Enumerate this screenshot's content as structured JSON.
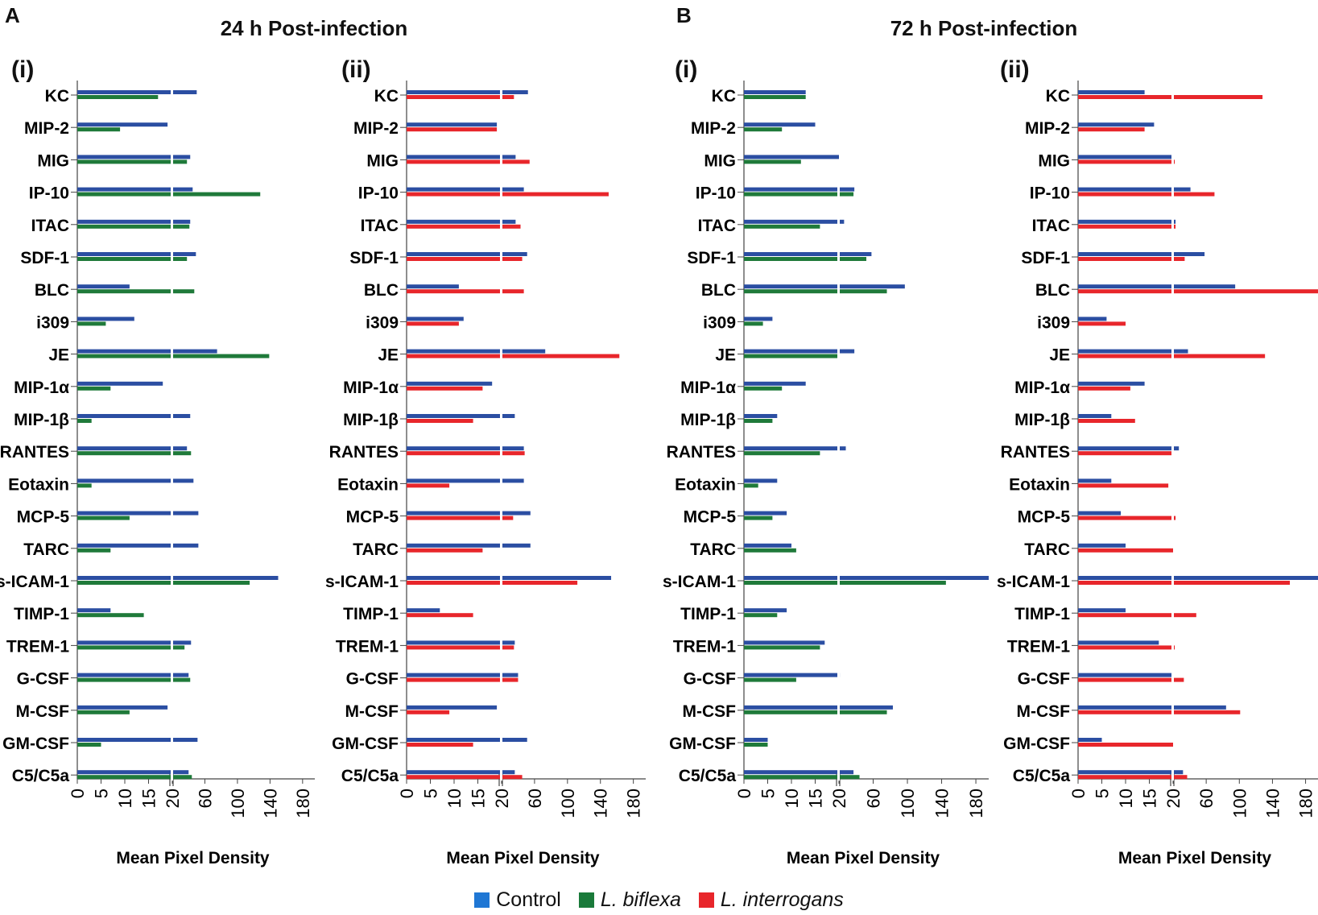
{
  "panels": [
    {
      "letter": "A",
      "title": "24 h Post-infection"
    },
    {
      "letter": "B",
      "title": "72 h Post-infection"
    }
  ],
  "legend": {
    "items": [
      {
        "label": "Control",
        "color": "#1f77d4",
        "italic": false
      },
      {
        "label": "L. biflexa",
        "color": "#1a7a3a",
        "italic": true
      },
      {
        "label": "L. interrogans",
        "color": "#e8262b",
        "italic": true
      }
    ]
  },
  "colors": {
    "control": "#2b4ea2",
    "biflexa": "#1f7a3a",
    "interrogans": "#e8262b"
  },
  "chart_data": [
    {
      "type": "bar",
      "panel": "A",
      "subpanel": "(i)",
      "orientation": "horizontal",
      "xlabel": "Mean Pixel Density",
      "xticks": [
        "0",
        "5",
        "10",
        "15",
        "20",
        "60",
        "100",
        "140",
        "180"
      ],
      "axis_break": 20,
      "categories": [
        "KC",
        "MIP-2",
        "MIG",
        "IP-10",
        "ITAC",
        "SDF-1",
        "BLC",
        "i309",
        "JE",
        "MIP-1α",
        "MIP-1β",
        "RANTES",
        "Eotaxin",
        "MCP-5",
        "TARC",
        "s-ICAM-1",
        "TIMP-1",
        "TREM-1",
        "G-CSF",
        "M-CSF",
        "GM-CSF",
        "C5/C5a"
      ],
      "series": [
        {
          "name": "Control",
          "values": [
            50,
            19,
            42,
            45,
            42,
            49,
            11,
            12,
            75,
            18,
            42,
            38,
            46,
            52,
            52,
            150,
            7,
            43,
            40,
            19,
            51,
            40
          ]
        },
        {
          "name": "L. biflexa",
          "values": [
            17,
            9,
            38,
            128,
            41,
            38,
            47,
            6,
            139,
            7,
            3,
            43,
            3,
            11,
            7,
            115,
            14,
            35,
            42,
            11,
            5,
            44
          ]
        }
      ]
    },
    {
      "type": "bar",
      "panel": "A",
      "subpanel": "(ii)",
      "orientation": "horizontal",
      "xlabel": "Mean Pixel Density",
      "xticks": [
        "0",
        "5",
        "10",
        "15",
        "20",
        "60",
        "100",
        "140",
        "180"
      ],
      "axis_break": 20,
      "categories": [
        "KC",
        "MIP-2",
        "MIG",
        "IP-10",
        "ITAC",
        "SDF-1",
        "BLC",
        "i309",
        "JE",
        "MIP-1α",
        "MIP-1β",
        "RANTES",
        "Eotaxin",
        "MCP-5",
        "TARC",
        "s-ICAM-1",
        "TIMP-1",
        "TREM-1",
        "G-CSF",
        "M-CSF",
        "GM-CSF",
        "C5/C5a"
      ],
      "series": [
        {
          "name": "Control",
          "values": [
            52,
            19,
            37,
            47,
            37,
            51,
            11,
            12,
            73,
            18,
            36,
            47,
            47,
            55,
            55,
            153,
            7,
            36,
            40,
            19,
            51,
            36
          ]
        },
        {
          "name": "L. interrogans",
          "values": [
            35,
            19,
            54,
            150,
            43,
            45,
            47,
            11,
            163,
            16,
            14,
            48,
            9,
            34,
            16,
            112,
            14,
            35,
            40,
            9,
            14,
            45
          ]
        }
      ]
    },
    {
      "type": "bar",
      "panel": "B",
      "subpanel": "(i)",
      "orientation": "horizontal",
      "xlabel": "Mean Pixel Density",
      "xticks": [
        "0",
        "5",
        "10",
        "15",
        "20",
        "60",
        "100",
        "140",
        "180"
      ],
      "axis_break": 20,
      "categories": [
        "KC",
        "MIP-2",
        "MIG",
        "IP-10",
        "ITAC",
        "SDF-1",
        "BLC",
        "i309",
        "JE",
        "MIP-1α",
        "MIP-1β",
        "RANTES",
        "Eotaxin",
        "MCP-5",
        "TARC",
        "s-ICAM-1",
        "TIMP-1",
        "TREM-1",
        "G-CSF",
        "M-CSF",
        "GM-CSF",
        "C5/C5a"
      ],
      "series": [
        {
          "name": "Control",
          "values": [
            13,
            15,
            20,
            38,
            26,
            58,
            97,
            6,
            38,
            13,
            7,
            28,
            7,
            9,
            10,
            196,
            9,
            17,
            21,
            83,
            5,
            37
          ]
        },
        {
          "name": "L. biflexa",
          "values": [
            13,
            8,
            12,
            37,
            16,
            52,
            76,
            4,
            20,
            8,
            6,
            16,
            3,
            6,
            11,
            145,
            7,
            16,
            11,
            76,
            5,
            44
          ]
        }
      ]
    },
    {
      "type": "bar",
      "panel": "B",
      "subpanel": "(ii)",
      "orientation": "horizontal",
      "xlabel": "Mean Pixel Density",
      "xticks": [
        "0",
        "5",
        "10",
        "15",
        "20",
        "60",
        "100",
        "140",
        "180"
      ],
      "axis_break": 20,
      "categories": [
        "KC",
        "MIP-2",
        "MIG",
        "IP-10",
        "ITAC",
        "SDF-1",
        "BLC",
        "i309",
        "JE",
        "MIP-1α",
        "MIP-1β",
        "RANTES",
        "Eotaxin",
        "MCP-5",
        "TARC",
        "s-ICAM-1",
        "TIMP-1",
        "TREM-1",
        "G-CSF",
        "M-CSF",
        "GM-CSF",
        "C5/C5a"
      ],
      "series": [
        {
          "name": "Control",
          "values": [
            14,
            16,
            20,
            41,
            23,
            58,
            95,
            6,
            38,
            14,
            7,
            27,
            7,
            9,
            10,
            198,
            10,
            17,
            20,
            84,
            5,
            32
          ]
        },
        {
          "name": "L. interrogans",
          "values": [
            128,
            14,
            22,
            70,
            23,
            34,
            229,
            10,
            131,
            11,
            12,
            20,
            19,
            23,
            20,
            161,
            48,
            22,
            33,
            101,
            20,
            37
          ]
        }
      ]
    }
  ]
}
